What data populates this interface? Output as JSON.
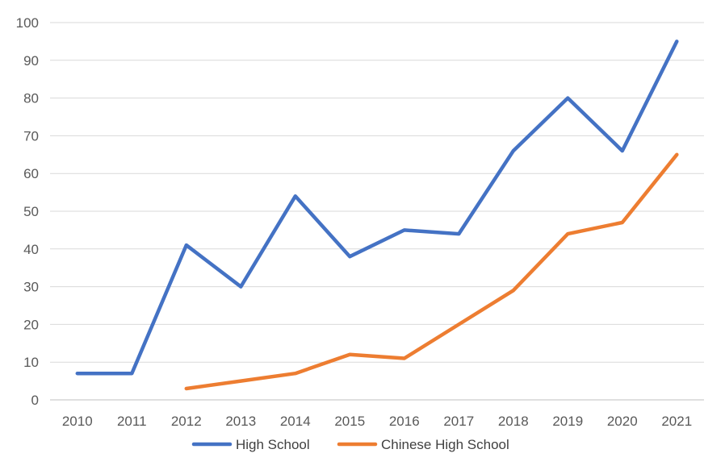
{
  "chart_data": {
    "type": "line",
    "x": [
      "2010",
      "2011",
      "2012",
      "2013",
      "2014",
      "2015",
      "2016",
      "2017",
      "2018",
      "2019",
      "2020",
      "2021"
    ],
    "ylim": [
      0,
      100
    ],
    "yticks": [
      "0",
      "10",
      "20",
      "30",
      "40",
      "50",
      "60",
      "70",
      "80",
      "90",
      "100"
    ],
    "grid": true,
    "legend_position": "bottom",
    "series": [
      {
        "name": "High School",
        "color": "#4472C4",
        "values": [
          7,
          7,
          41,
          30,
          54,
          38,
          45,
          44,
          66,
          80,
          66,
          95
        ]
      },
      {
        "name": "Chinese High School",
        "color": "#ED7D31",
        "values": [
          null,
          null,
          3,
          5,
          7,
          12,
          11,
          20,
          29,
          44,
          47,
          65
        ]
      }
    ]
  }
}
